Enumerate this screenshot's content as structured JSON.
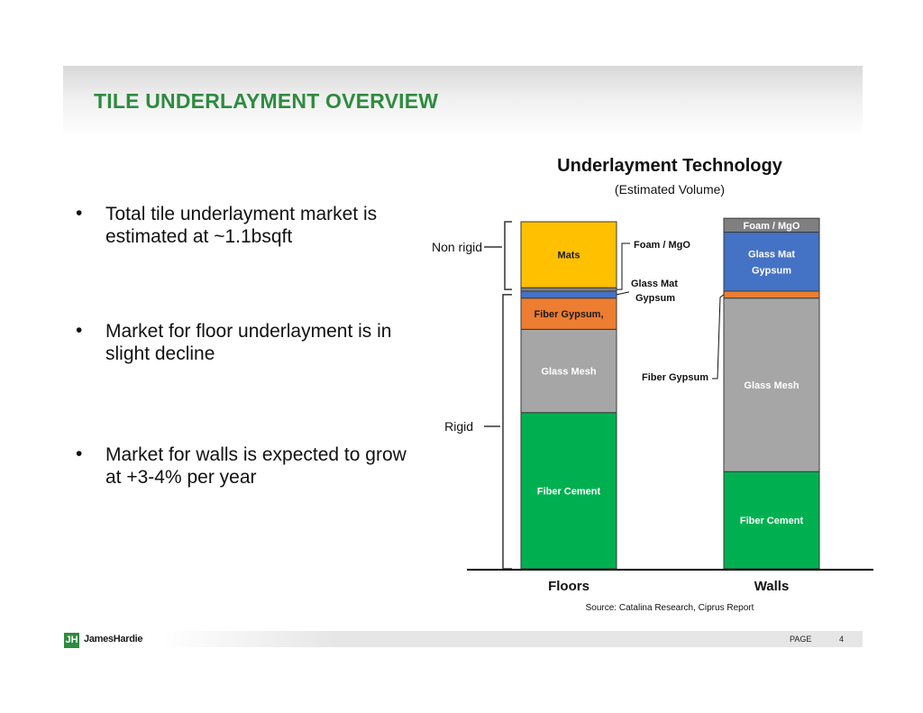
{
  "slide": {
    "title": "TILE UNDERLAYMENT OVERVIEW",
    "bullet_marker": "•",
    "bullets": [
      "Total tile underlayment market is estimated at ~1.1bsqft",
      "Market for floor underlayment is in slight decline",
      "Market for walls is expected to grow at +3-4% per year"
    ]
  },
  "footer": {
    "logo_mark": "JH",
    "logo_text": "JamesHardie",
    "page_label": "PAGE",
    "page_number": "4"
  },
  "chart_data": {
    "type": "bar",
    "stacked": true,
    "normalized_percent": true,
    "title": "Underlayment Technology",
    "subtitle": "(Estimated Volume)",
    "source": "Source: Catalina Research, Ciprus Report",
    "categories": [
      "Floors",
      "Walls"
    ],
    "ylim": [
      0,
      100
    ],
    "grid": false,
    "legend": "none",
    "series": [
      {
        "label": "Fiber Cement",
        "color": "#00b050",
        "values": [
          45,
          28
        ],
        "inside": [
          true,
          true
        ]
      },
      {
        "label": "Glass Mesh",
        "color": "#a6a6a6",
        "values": [
          24,
          50
        ],
        "inside": [
          true,
          true
        ]
      },
      {
        "label": "Fiber Gypsum,",
        "color": "#ed7d31",
        "values": [
          9,
          2
        ],
        "inside": [
          true,
          false
        ]
      },
      {
        "label": "Glass Mat Gypsum",
        "color": "#4472c4",
        "values": [
          2,
          17
        ],
        "inside": [
          false,
          true
        ]
      },
      {
        "label": "Foam / MgO",
        "color": "#7f7f7f",
        "values": [
          1,
          4
        ],
        "inside": [
          false,
          true
        ]
      },
      {
        "label": "Mats",
        "color": "#ffc000",
        "values": [
          19,
          0
        ],
        "inside": [
          true,
          false
        ]
      }
    ],
    "callouts": [
      "Foam / MgO",
      "Glass Mat Gypsum",
      "Fiber Gypsum"
    ],
    "group_labels": [
      "Non rigid",
      "Rigid"
    ]
  }
}
